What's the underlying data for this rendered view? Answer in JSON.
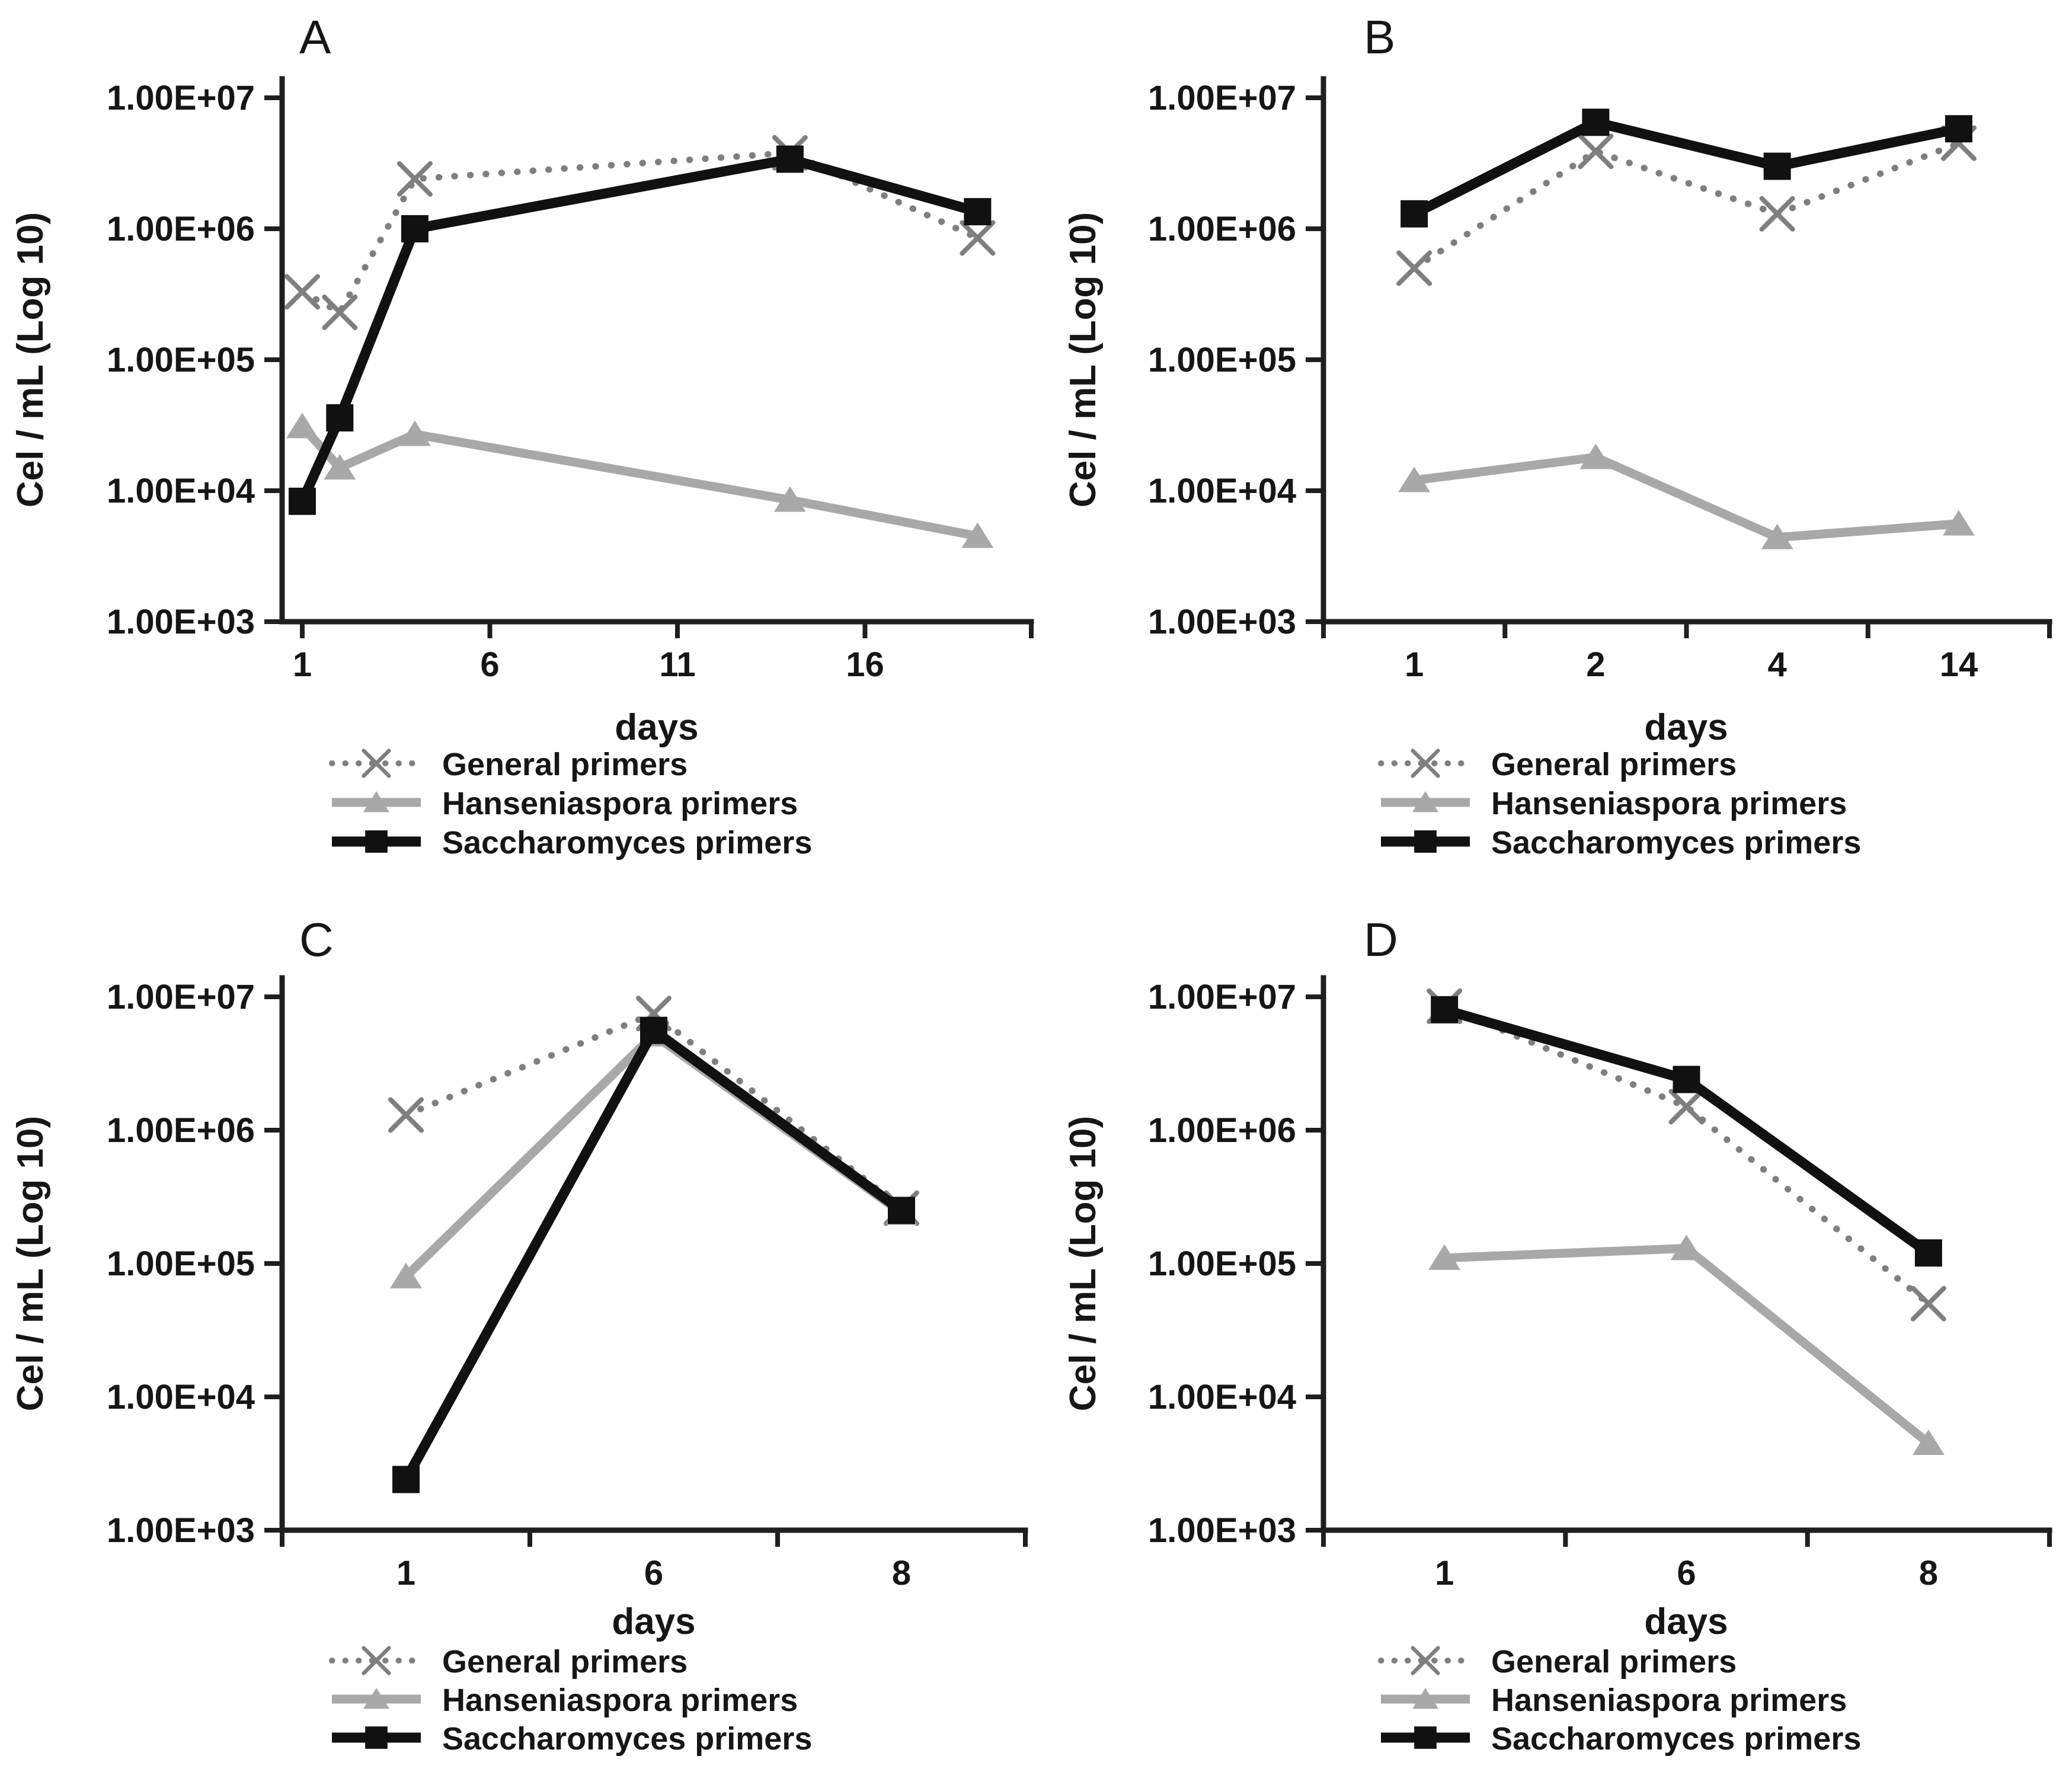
{
  "figure": {
    "ylabel": "Cel / mL (Log 10)",
    "xlabel": "days"
  },
  "colors": {
    "general": "#7f7f7f",
    "hanseniaspora": "#a8a8a8",
    "saccharomyces": "#111111",
    "axis": "#1f1f1f",
    "text": "#161616",
    "background": "#ffffff"
  },
  "chart_data": [
    {
      "id": "A",
      "label": "A",
      "type": "line",
      "x_type": "linear",
      "xlabel": "days",
      "ylabel": "Cel / mL (Log 10)",
      "x": [
        1,
        2,
        4,
        14,
        19
      ],
      "x_ticks": [
        1,
        6,
        11,
        16
      ],
      "x_tick_labels": [
        "1",
        "6",
        "11",
        "16"
      ],
      "ylim": [
        1000,
        10000000
      ],
      "y_ticks": [
        10000000,
        1000000,
        100000,
        10000,
        1000
      ],
      "y_tick_labels": [
        "1.00E+07",
        "1.00E+06",
        "1.00E+05",
        "1.00E+04",
        "1.00E+03"
      ],
      "legend_position": "bottom-left",
      "grid": false,
      "series": [
        {
          "name": "General primers",
          "key": "general",
          "values": [
            330000,
            230000,
            2400000,
            3800000,
            850000
          ]
        },
        {
          "name": "Hanseniaspora primers",
          "key": "hanseniaspora",
          "values": [
            31000,
            15000,
            27000,
            8500,
            4500
          ]
        },
        {
          "name": "Saccharomyces primers",
          "key": "saccharomyces",
          "values": [
            8300,
            36000,
            1000000,
            3400000,
            1350000
          ]
        }
      ]
    },
    {
      "id": "B",
      "label": "B",
      "type": "line",
      "x_type": "categorical",
      "xlabel": "days",
      "ylabel": "Cel / mL (Log 10)",
      "x": [
        "1",
        "2",
        "4",
        "14"
      ],
      "x_tick_labels": [
        "1",
        "2",
        "4",
        "14"
      ],
      "ylim": [
        1000,
        10000000
      ],
      "y_ticks": [
        10000000,
        1000000,
        100000,
        10000,
        1000
      ],
      "y_tick_labels": [
        "1.00E+07",
        "1.00E+06",
        "1.00E+05",
        "1.00E+04",
        "1.00E+03"
      ],
      "legend_position": "bottom-left",
      "grid": false,
      "series": [
        {
          "name": "General primers",
          "key": "general",
          "values": [
            500000,
            3900000,
            1300000,
            4500000
          ]
        },
        {
          "name": "Hanseniaspora primers",
          "key": "hanseniaspora",
          "values": [
            12000,
            18000,
            4400,
            5600
          ]
        },
        {
          "name": "Saccharomyces primers",
          "key": "saccharomyces",
          "values": [
            1300000,
            6500000,
            3000000,
            5800000
          ]
        }
      ]
    },
    {
      "id": "C",
      "label": "C",
      "type": "line",
      "x_type": "categorical",
      "xlabel": "days",
      "ylabel": "Cel / mL (Log 10)",
      "x": [
        "1",
        "6",
        "8"
      ],
      "x_tick_labels": [
        "1",
        "6",
        "8"
      ],
      "ylim": [
        1000,
        10000000
      ],
      "y_ticks": [
        10000000,
        1000000,
        100000,
        10000,
        1000
      ],
      "y_tick_labels": [
        "1.00E+07",
        "1.00E+06",
        "1.00E+05",
        "1.00E+04",
        "1.00E+03"
      ],
      "legend_position": "bottom-left",
      "grid": false,
      "series": [
        {
          "name": "General primers",
          "key": "general",
          "values": [
            1300000,
            7500000,
            260000
          ]
        },
        {
          "name": "Hanseniaspora primers",
          "key": "hanseniaspora",
          "values": [
            80000,
            5200000,
            240000
          ]
        },
        {
          "name": "Saccharomyces primers",
          "key": "saccharomyces",
          "values": [
            2400,
            5600000,
            250000
          ]
        }
      ]
    },
    {
      "id": "D",
      "label": "D",
      "type": "line",
      "x_type": "categorical",
      "xlabel": "days",
      "ylabel": "Cel / mL (Log 10)",
      "x": [
        "1",
        "6",
        "8"
      ],
      "x_tick_labels": [
        "1",
        "6",
        "8"
      ],
      "ylim": [
        1000,
        10000000
      ],
      "y_ticks": [
        10000000,
        1000000,
        100000,
        10000,
        1000
      ],
      "y_tick_labels": [
        "1.00E+07",
        "1.00E+06",
        "1.00E+05",
        "1.00E+04",
        "1.00E+03"
      ],
      "legend_position": "bottom-left",
      "grid": false,
      "series": [
        {
          "name": "General primers",
          "key": "general",
          "values": [
            8500000,
            1500000,
            50000
          ]
        },
        {
          "name": "Hanseniaspora primers",
          "key": "hanseniaspora",
          "values": [
            110000,
            130000,
            4500
          ]
        },
        {
          "name": "Saccharomyces primers",
          "key": "saccharomyces",
          "values": [
            8000000,
            2400000,
            120000
          ]
        }
      ]
    }
  ]
}
